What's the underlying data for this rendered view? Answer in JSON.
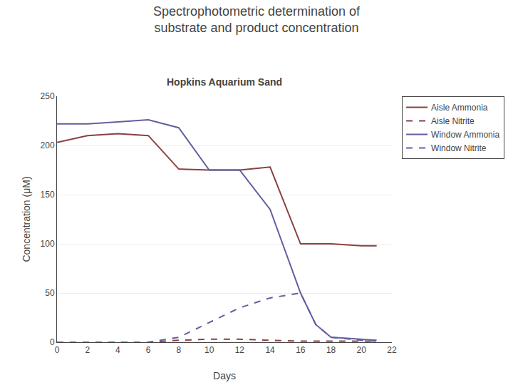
{
  "chart_data": {
    "type": "line",
    "title": "Spectrophotometric determination of\nsubstrate and product concentration",
    "subtitle": "Hopkins Aquarium Sand",
    "x_label": "Days",
    "y_label": "Concentration (μM)",
    "xlim": [
      0,
      22
    ],
    "ylim": [
      0,
      250
    ],
    "xticks": [
      0,
      2,
      4,
      6,
      8,
      10,
      12,
      14,
      16,
      18,
      20,
      22
    ],
    "yticks": [
      0,
      50,
      100,
      150,
      200,
      250
    ],
    "grid": true,
    "legend": "right",
    "series": [
      {
        "name": "Aisle Ammonia",
        "color": "#8B4040",
        "line_style": "solid",
        "x": [
          0,
          2,
          4,
          6,
          8,
          10,
          12,
          14,
          16,
          18,
          20,
          21
        ],
        "values": [
          203,
          210,
          212,
          210,
          176,
          175,
          175,
          178,
          100,
          100,
          98,
          98
        ]
      },
      {
        "name": "Aisle Nitrite",
        "color": "#8B4040",
        "line_style": "dashed",
        "x": [
          0,
          2,
          4,
          6,
          8,
          10,
          12,
          14,
          16,
          18,
          20,
          21
        ],
        "values": [
          0,
          0,
          0,
          0,
          2,
          3,
          3,
          2,
          1,
          1,
          1,
          1
        ]
      },
      {
        "name": "Window Ammonia",
        "color": "#6060A0",
        "line_style": "solid",
        "x": [
          0,
          2,
          4,
          6,
          8,
          10,
          12,
          14,
          16,
          17,
          18,
          20,
          21
        ],
        "values": [
          222,
          222,
          224,
          226,
          218,
          175,
          175,
          135,
          50,
          18,
          5,
          3,
          2
        ]
      },
      {
        "name": "Window Nitrite",
        "color": "#6060A0",
        "line_style": "dashed",
        "x": [
          0,
          2,
          4,
          6,
          8,
          10,
          12,
          14,
          16,
          17,
          18,
          20,
          21
        ],
        "values": [
          0,
          0,
          0,
          0,
          5,
          20,
          35,
          45,
          50,
          18,
          5,
          2,
          1
        ]
      }
    ]
  }
}
